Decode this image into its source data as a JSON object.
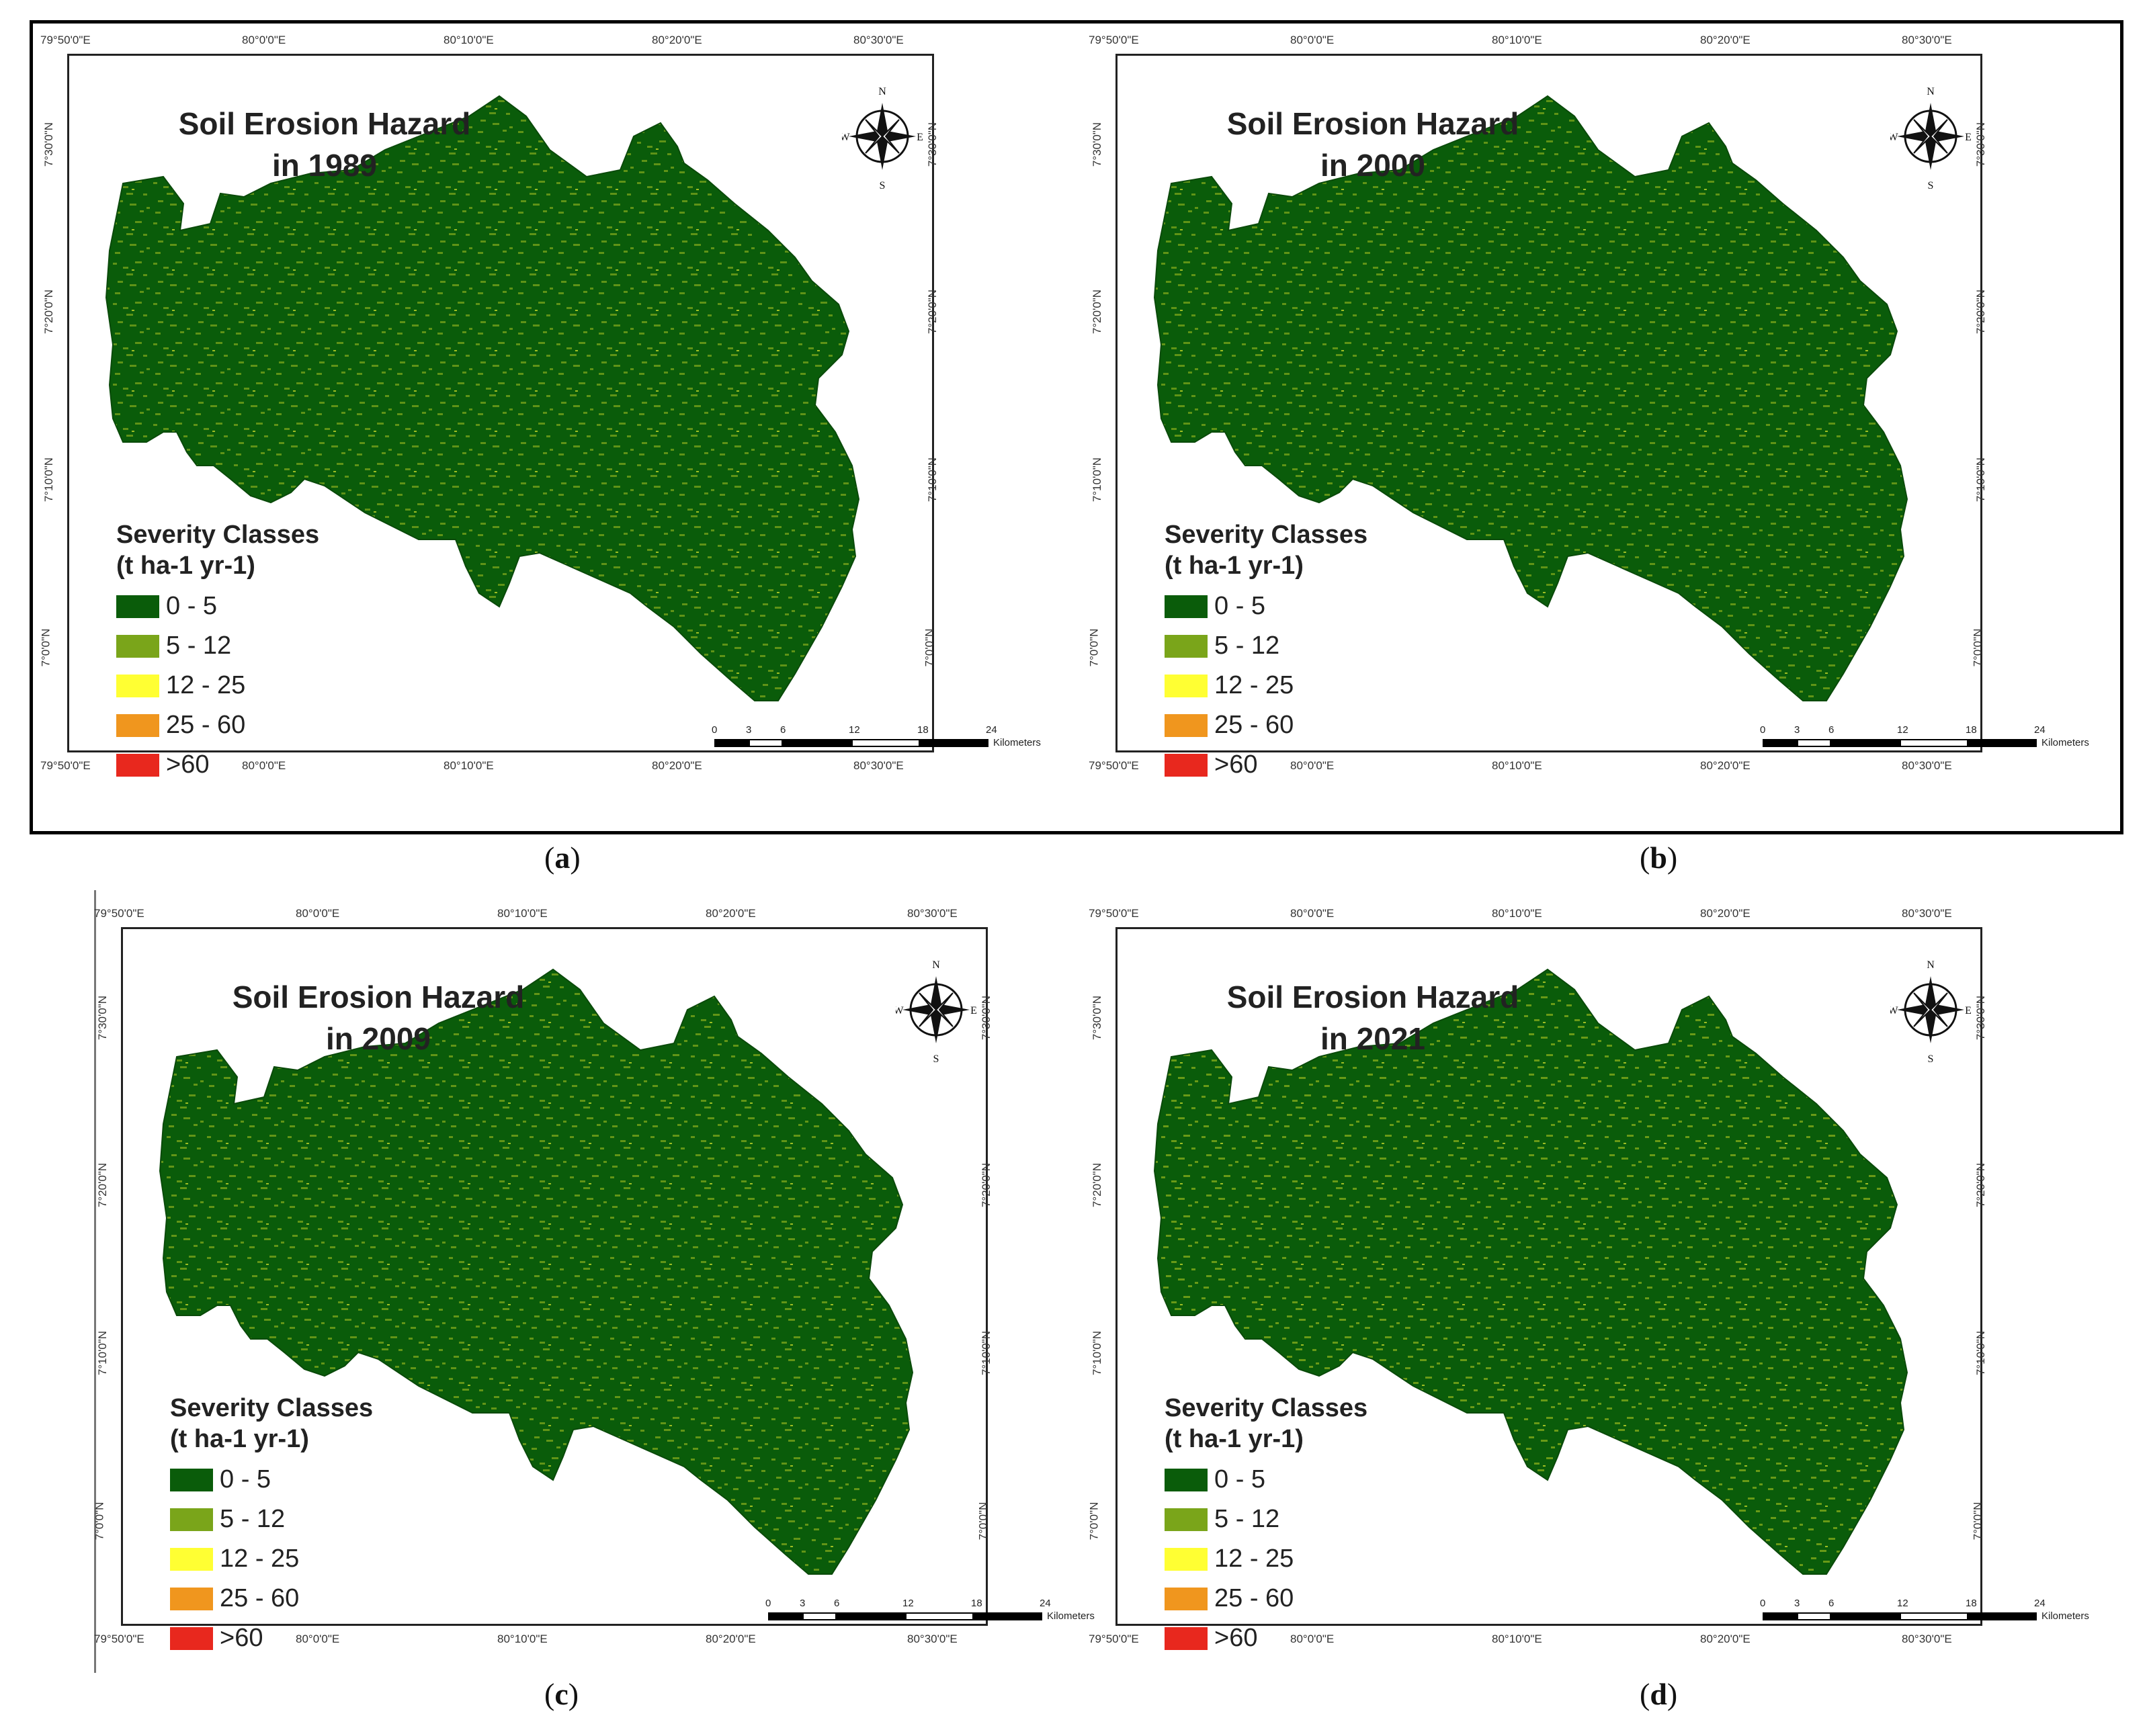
{
  "panels": [
    {
      "id": "a",
      "label": "a",
      "title_line1": "Soil Erosion Hazard",
      "title_line2": "in 1989"
    },
    {
      "id": "b",
      "label": "b",
      "title_line1": "Soil Erosion Hazard",
      "title_line2": "in 2000"
    },
    {
      "id": "c",
      "label": "c",
      "title_line1": "Soil Erosion Hazard",
      "title_line2": "in 2009"
    },
    {
      "id": "d",
      "label": "d",
      "title_line1": "Soil Erosion Hazard",
      "title_line2": "in 2021"
    }
  ],
  "legend": {
    "title_line1": "Severity Classes",
    "title_line2": "(t ha-1 yr-1)",
    "classes": [
      {
        "label": "0 - 5",
        "color": "#0a5c0a"
      },
      {
        "label": "5 - 12",
        "color": "#7aa51a"
      },
      {
        "label": "12 - 25",
        "color": "#ffff33"
      },
      {
        "label": "25 - 60",
        "color": "#f0961e"
      },
      {
        "label": ">60",
        "color": "#e8281e"
      }
    ]
  },
  "coords": {
    "longitudes": [
      "79°50'0\"E",
      "80°0'0\"E",
      "80°10'0\"E",
      "80°20'0\"E",
      "80°30'0\"E"
    ],
    "latitudes": [
      "7°30'0\"N",
      "7°20'0\"N",
      "7°10'0\"N",
      "7°0'0\"N"
    ]
  },
  "compass": {
    "n": "N",
    "s": "S",
    "e": "E",
    "w": "W"
  },
  "scale_bar": {
    "ticks": [
      "0",
      "3",
      "6",
      "12",
      "18",
      "24"
    ],
    "unit": "Kilometers"
  }
}
